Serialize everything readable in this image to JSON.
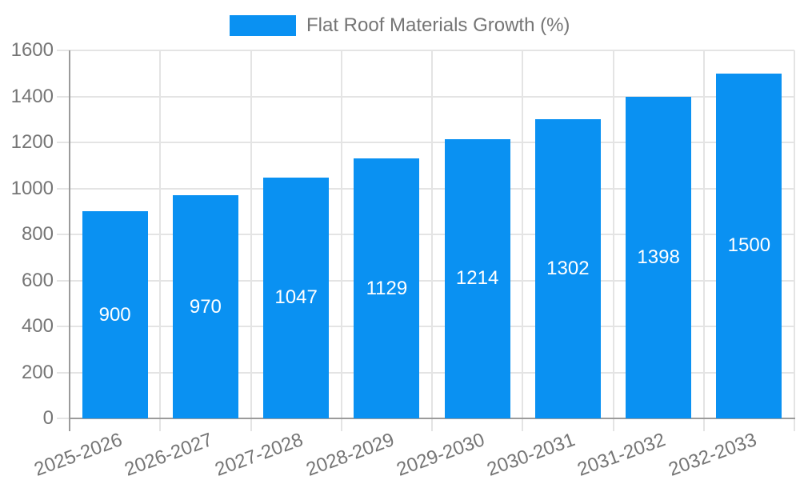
{
  "chart_data": {
    "type": "bar",
    "legend": {
      "label": "Flat Roof Materials Growth (%)",
      "position": "top"
    },
    "categories": [
      "2025-2026",
      "2026-2027",
      "2027-2028",
      "2028-2029",
      "2029-2030",
      "2030-2031",
      "2031-2032",
      "2032-2033"
    ],
    "series": [
      {
        "name": "Flat Roof Materials Growth (%)",
        "values": [
          900,
          970,
          1047,
          1129,
          1214,
          1302,
          1398,
          1500
        ]
      }
    ],
    "xlabel": "",
    "ylabel": "",
    "ylim": [
      0,
      1600
    ],
    "ytick_step": 200,
    "ytick_labels": [
      "0",
      "200",
      "400",
      "600",
      "800",
      "1000",
      "1200",
      "1400",
      "1600"
    ],
    "grid": true,
    "bar_value_labels_shown": true,
    "x_label_rotation_deg": -20,
    "colors": {
      "bar": "#0a91f2",
      "grid": "#e4e4e4",
      "axis": "#9b9b9b",
      "axis_text": "#757575",
      "bar_label_text": "#ffffff",
      "background": "#ffffff"
    }
  }
}
